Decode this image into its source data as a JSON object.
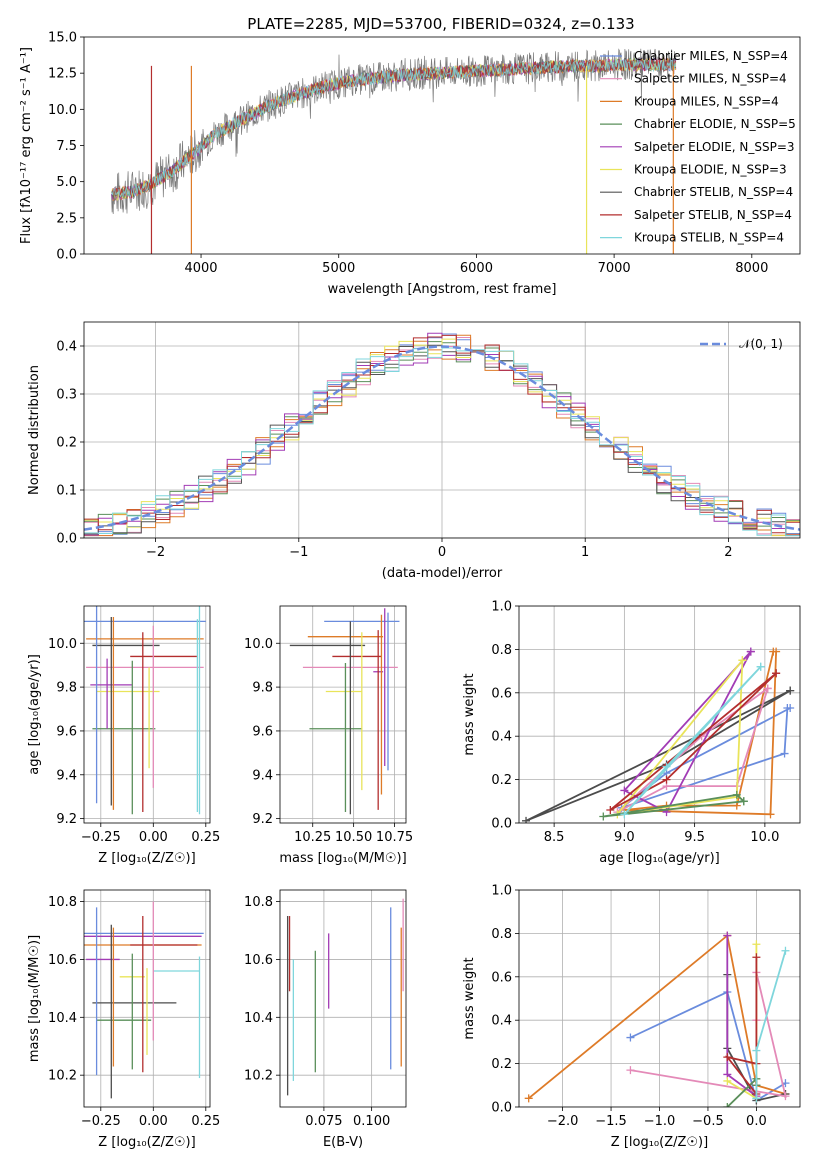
{
  "figure_title": "PLATE=2285, MJD=53700, FIBERID=0324, z=0.133",
  "colors": [
    "#6a8cdd",
    "#de7b28",
    "#4c4c4c",
    "#e48ab8",
    "#8fce3a",
    "#a23cb5",
    "#e9e45a",
    "#555555",
    "#b32e2e",
    "#7fd6dc",
    "#d7d7d7",
    "#5a8f5a"
  ],
  "chart_data": [
    {
      "id": "spectrum",
      "type": "line",
      "title": "PLATE=2285, MJD=53700, FIBERID=0324, z=0.133",
      "xlabel": "wavelength [Angstrom, rest frame]",
      "ylabel": "Flux [fλ10⁻¹⁷ erg cm⁻² s⁻¹ A⁻¹]",
      "xlim": [
        3150,
        8350
      ],
      "ylim": [
        0,
        15.0
      ],
      "xticks": [
        4000,
        5000,
        6000,
        7000,
        8000
      ],
      "yticks": [
        0.0,
        2.5,
        5.0,
        7.5,
        10.0,
        12.5,
        15.0
      ],
      "legend_position": "top-right",
      "continuum": {
        "x": [
          3350,
          3500,
          3650,
          3800,
          3950,
          4100,
          4300,
          4500,
          4700,
          4900,
          5100,
          5300,
          5500,
          5700,
          5900,
          6100,
          6300,
          6500,
          6700,
          6900,
          7100,
          7300,
          7450
        ],
        "y": [
          4.1,
          4.3,
          4.9,
          5.8,
          7.0,
          8.3,
          9.3,
          10.3,
          11.0,
          11.6,
          12.0,
          12.2,
          12.4,
          12.5,
          12.6,
          12.7,
          12.8,
          12.9,
          13.0,
          13.0,
          13.1,
          13.1,
          13.1
        ]
      },
      "series": [
        {
          "name": "Chabrier MILES, N_SSP=4",
          "color": "#6a8cdd"
        },
        {
          "name": "Salpeter MILES, N_SSP=4",
          "color": "#e48ab8"
        },
        {
          "name": "Kroupa MILES, N_SSP=4",
          "color": "#de7b28"
        },
        {
          "name": "Chabrier ELODIE, N_SSP=5",
          "color": "#5a8f5a"
        },
        {
          "name": "Salpeter ELODIE, N_SSP=3",
          "color": "#a23cb5"
        },
        {
          "name": "Kroupa ELODIE, N_SSP=3",
          "color": "#e9e45a"
        },
        {
          "name": "Chabrier STELIB, N_SSP=4",
          "color": "#555555"
        },
        {
          "name": "Salpeter STELIB, N_SSP=4",
          "color": "#b32e2e"
        },
        {
          "name": "Kroupa STELIB, N_SSP=4",
          "color": "#7fd6dc"
        }
      ]
    },
    {
      "id": "residuals",
      "type": "line",
      "xlabel": "(data-model)/error",
      "ylabel": "Normed distribution",
      "xlim": [
        -2.5,
        2.5
      ],
      "ylim": [
        0,
        0.45
      ],
      "xticks": [
        -2,
        -1,
        0,
        1,
        2
      ],
      "yticks": [
        0.0,
        0.1,
        0.2,
        0.3,
        0.4
      ],
      "legend": "𝒩(0, 1)",
      "legend_position": "top-right",
      "grid": true
    },
    {
      "id": "age_vs_Z",
      "type": "scatter",
      "xlabel": "Z [log₁₀(Z/Z☉)]",
      "ylabel": "age  [log₁₀(age/yr)]",
      "xlim": [
        -0.33,
        0.27
      ],
      "ylim": [
        9.18,
        10.17
      ],
      "xticks": [
        -0.25,
        0.0,
        0.25
      ],
      "yticks": [
        9.2,
        9.4,
        9.6,
        9.8,
        10.0
      ],
      "grid": true,
      "points": [
        {
          "x": -0.05,
          "y": 10.1,
          "xerr": 0.3,
          "yerr": 0.0,
          "color": "#6a8cdd"
        },
        {
          "x": -0.04,
          "y": 10.02,
          "xerr": 0.28,
          "yerr": 0.0,
          "color": "#de7b28"
        },
        {
          "x": -0.13,
          "y": 9.99,
          "xerr": 0.16,
          "yerr": 0.0,
          "color": "#4c4c4c"
        },
        {
          "x": 0.05,
          "y": 9.94,
          "xerr": 0.16,
          "yerr": 0.0,
          "color": "#b32e2e"
        },
        {
          "x": -0.04,
          "y": 9.89,
          "xerr": 0.28,
          "yerr": 0.0,
          "color": "#e48ab8"
        },
        {
          "x": -0.2,
          "y": 9.81,
          "xerr": 0.1,
          "yerr": 0.0,
          "color": "#a23cb5"
        },
        {
          "x": -0.12,
          "y": 9.78,
          "xerr": 0.15,
          "yerr": 0.0,
          "color": "#e9e45a"
        },
        {
          "x": -0.14,
          "y": 9.61,
          "xerr": 0.15,
          "yerr": 0.0,
          "color": "#5a8f5a"
        },
        {
          "x": -0.27,
          "y": 9.72,
          "xerr": 0.0,
          "yerr": 0.45,
          "color": "#6a8cdd"
        },
        {
          "x": -0.2,
          "y": 9.69,
          "xerr": 0.0,
          "yerr": 0.43,
          "color": "#4c4c4c"
        },
        {
          "x": -0.19,
          "y": 9.68,
          "xerr": 0.0,
          "yerr": 0.44,
          "color": "#de7b28"
        },
        {
          "x": -0.22,
          "y": 9.77,
          "xerr": 0.0,
          "yerr": 0.16,
          "color": "#a23cb5"
        },
        {
          "x": -0.1,
          "y": 9.57,
          "xerr": 0.0,
          "yerr": 0.35,
          "color": "#5a8f5a"
        },
        {
          "x": -0.05,
          "y": 9.64,
          "xerr": 0.0,
          "yerr": 0.41,
          "color": "#b32e2e"
        },
        {
          "x": -0.02,
          "y": 9.66,
          "xerr": 0.0,
          "yerr": 0.23,
          "color": "#e9e45a"
        },
        {
          "x": 0.0,
          "y": 9.71,
          "xerr": 0.0,
          "yerr": 0.37,
          "color": "#e48ab8"
        },
        {
          "x": 0.21,
          "y": 9.67,
          "xerr": 0.0,
          "yerr": 0.44,
          "color": "#7fd6dc"
        },
        {
          "x": 0.22,
          "y": 9.72,
          "xerr": 0.0,
          "yerr": 0.5,
          "color": "#7fd6dc"
        }
      ]
    },
    {
      "id": "age_vs_mass",
      "type": "scatter",
      "xlabel": "mass [log₁₀(M/M☉)]",
      "xlim": [
        10.05,
        10.82
      ],
      "ylim": [
        9.18,
        10.17
      ],
      "xticks": [
        10.25,
        10.5,
        10.75
      ],
      "yticks": [
        9.2,
        9.4,
        9.6,
        9.8,
        10.0
      ],
      "grid": true,
      "points": [
        {
          "x": 10.55,
          "y": 10.1,
          "xerr": 0.23,
          "yerr": 0.0,
          "color": "#6a8cdd"
        },
        {
          "x": 10.45,
          "y": 10.03,
          "xerr": 0.23,
          "yerr": 0.0,
          "color": "#de7b28"
        },
        {
          "x": 10.34,
          "y": 9.99,
          "xerr": 0.23,
          "yerr": 0.0,
          "color": "#4c4c4c"
        },
        {
          "x": 10.52,
          "y": 9.94,
          "xerr": 0.15,
          "yerr": 0.0,
          "color": "#b32e2e"
        },
        {
          "x": 10.48,
          "y": 9.89,
          "xerr": 0.29,
          "yerr": 0.0,
          "color": "#e48ab8"
        },
        {
          "x": 10.65,
          "y": 9.87,
          "xerr": 0.03,
          "yerr": 0.0,
          "color": "#a23cb5"
        },
        {
          "x": 10.44,
          "y": 9.78,
          "xerr": 0.11,
          "yerr": 0.0,
          "color": "#e9e45a"
        },
        {
          "x": 10.39,
          "y": 9.61,
          "xerr": 0.16,
          "yerr": 0.0,
          "color": "#5a8f5a"
        },
        {
          "x": 10.48,
          "y": 9.66,
          "xerr": 0.0,
          "yerr": 0.44,
          "color": "#4c4c4c"
        },
        {
          "x": 10.45,
          "y": 9.57,
          "xerr": 0.0,
          "yerr": 0.34,
          "color": "#5a8f5a"
        },
        {
          "x": 10.55,
          "y": 9.69,
          "xerr": 0.0,
          "yerr": 0.36,
          "color": "#e9e45a"
        },
        {
          "x": 10.65,
          "y": 9.65,
          "xerr": 0.0,
          "yerr": 0.41,
          "color": "#b32e2e"
        },
        {
          "x": 10.67,
          "y": 9.72,
          "xerr": 0.0,
          "yerr": 0.41,
          "color": "#de7b28"
        },
        {
          "x": 10.69,
          "y": 9.8,
          "xerr": 0.0,
          "yerr": 0.36,
          "color": "#a23cb5"
        },
        {
          "x": 10.71,
          "y": 9.78,
          "xerr": 0.0,
          "yerr": 0.36,
          "color": "#6a8cdd"
        }
      ]
    },
    {
      "id": "massweight_vs_age",
      "type": "line",
      "xlabel": "age  [log₁₀(age/yr)]",
      "ylabel": "mass weight",
      "xlim": [
        8.25,
        10.25
      ],
      "ylim": [
        0.0,
        1.0
      ],
      "xticks": [
        8.5,
        9.0,
        9.5,
        10.0
      ],
      "yticks": [
        0.0,
        0.2,
        0.4,
        0.6,
        0.8,
        1.0
      ],
      "grid": true,
      "series": [
        {
          "color": "#6a8cdd",
          "x": [
            10.16,
            10.14,
            8.98,
            9.3,
            10.18
          ],
          "y": [
            0.53,
            0.32,
            0.07,
            0.23,
            0.53
          ]
        },
        {
          "color": "#de7b28",
          "x": [
            10.08,
            10.04,
            9.0,
            9.3,
            9.8,
            10.06
          ],
          "y": [
            0.79,
            0.04,
            0.06,
            0.08,
            0.08,
            0.79
          ]
        },
        {
          "color": "#4c4c4c",
          "x": [
            10.18,
            8.3,
            9.3,
            10.18
          ],
          "y": [
            0.61,
            0.01,
            0.27,
            0.61
          ]
        },
        {
          "color": "#e48ab8",
          "x": [
            10.02,
            9.8,
            9.3,
            8.95,
            9.55,
            10.02
          ],
          "y": [
            0.62,
            0.17,
            0.17,
            0.05,
            0.4,
            0.62
          ]
        },
        {
          "color": "#a23cb5",
          "x": [
            9.9,
            9.0,
            9.3,
            9.9
          ],
          "y": [
            0.79,
            0.15,
            0.05,
            0.79
          ]
        },
        {
          "color": "#e9e45a",
          "x": [
            9.84,
            9.8,
            8.95,
            9.84
          ],
          "y": [
            0.75,
            0.12,
            0.04,
            0.75
          ]
        },
        {
          "color": "#5a8f5a",
          "x": [
            9.85,
            9.8,
            8.85,
            9.85
          ],
          "y": [
            0.1,
            0.13,
            0.03,
            0.1
          ]
        },
        {
          "color": "#b32e2e",
          "x": [
            10.08,
            8.9,
            9.3,
            10.08
          ],
          "y": [
            0.69,
            0.06,
            0.2,
            0.69
          ]
        },
        {
          "color": "#7fd6dc",
          "x": [
            9.97,
            9.0,
            9.3,
            9.97
          ],
          "y": [
            0.72,
            0.04,
            0.26,
            0.72
          ]
        }
      ]
    },
    {
      "id": "mass_vs_Z",
      "type": "scatter",
      "xlabel": "Z [log₁₀(Z/Z☉)]",
      "ylabel": "mass [log₁₀(M/M☉)]",
      "xlim": [
        -0.33,
        0.27
      ],
      "ylim": [
        10.09,
        10.84
      ],
      "xticks": [
        -0.25,
        0.0,
        0.25
      ],
      "yticks": [
        10.2,
        10.4,
        10.6,
        10.8
      ],
      "grid": true,
      "points": [
        {
          "x": -0.05,
          "y": 10.69,
          "xerr": 0.29,
          "yerr": 0.0,
          "color": "#6a8cdd"
        },
        {
          "x": -0.05,
          "y": 10.68,
          "xerr": 0.28,
          "yerr": 0.0,
          "color": "#a23cb5"
        },
        {
          "x": -0.05,
          "y": 10.65,
          "xerr": 0.28,
          "yerr": 0.0,
          "color": "#de7b28"
        },
        {
          "x": 0.05,
          "y": 10.65,
          "xerr": 0.16,
          "yerr": 0.0,
          "color": "#b32e2e"
        },
        {
          "x": -0.24,
          "y": 10.6,
          "xerr": 0.08,
          "yerr": 0.0,
          "color": "#a23cb5"
        },
        {
          "x": 0.11,
          "y": 10.56,
          "xerr": 0.11,
          "yerr": 0.0,
          "color": "#7fd6dc"
        },
        {
          "x": -0.1,
          "y": 10.54,
          "xerr": 0.06,
          "yerr": 0.0,
          "color": "#e9e45a"
        },
        {
          "x": -0.09,
          "y": 10.45,
          "xerr": 0.2,
          "yerr": 0.0,
          "color": "#4c4c4c"
        },
        {
          "x": -0.14,
          "y": 10.39,
          "xerr": 0.13,
          "yerr": 0.0,
          "color": "#5a8f5a"
        },
        {
          "x": -0.27,
          "y": 10.49,
          "xerr": 0.0,
          "yerr": 0.29,
          "color": "#6a8cdd"
        },
        {
          "x": -0.2,
          "y": 10.42,
          "xerr": 0.0,
          "yerr": 0.3,
          "color": "#4c4c4c"
        },
        {
          "x": -0.19,
          "y": 10.47,
          "xerr": 0.0,
          "yerr": 0.24,
          "color": "#de7b28"
        },
        {
          "x": -0.1,
          "y": 10.42,
          "xerr": 0.0,
          "yerr": 0.2,
          "color": "#5a8f5a"
        },
        {
          "x": -0.05,
          "y": 10.48,
          "xerr": 0.0,
          "yerr": 0.27,
          "color": "#b32e2e"
        },
        {
          "x": -0.03,
          "y": 10.42,
          "xerr": 0.0,
          "yerr": 0.15,
          "color": "#e9e45a"
        },
        {
          "x": 0.0,
          "y": 10.56,
          "xerr": 0.0,
          "yerr": 0.24,
          "color": "#e48ab8"
        },
        {
          "x": 0.22,
          "y": 10.4,
          "xerr": 0.0,
          "yerr": 0.21,
          "color": "#7fd6dc"
        }
      ]
    },
    {
      "id": "mass_vs_EBV",
      "type": "scatter",
      "xlabel": "E(B-V)",
      "xlim": [
        0.052,
        0.118
      ],
      "ylim": [
        10.09,
        10.84
      ],
      "xticks": [
        0.075,
        0.1
      ],
      "yticks": [
        10.2,
        10.4,
        10.6,
        10.8
      ],
      "grid": true,
      "points": [
        {
          "x": 0.056,
          "y": 10.44,
          "xerr": 0.0,
          "yerr": 0.31,
          "color": "#4c4c4c"
        },
        {
          "x": 0.057,
          "y": 10.62,
          "xerr": 0.0,
          "yerr": 0.13,
          "color": "#b32e2e"
        },
        {
          "x": 0.059,
          "y": 10.39,
          "xerr": 0.0,
          "yerr": 0.21,
          "color": "#7fd6dc"
        },
        {
          "x": 0.0705,
          "y": 10.42,
          "xerr": 0.0,
          "yerr": 0.21,
          "color": "#5a8f5a"
        },
        {
          "x": 0.0775,
          "y": 10.56,
          "xerr": 0.0,
          "yerr": 0.13,
          "color": "#a23cb5"
        },
        {
          "x": 0.11,
          "y": 10.5,
          "xerr": 0.0,
          "yerr": 0.28,
          "color": "#6a8cdd"
        },
        {
          "x": 0.1155,
          "y": 10.47,
          "xerr": 0.0,
          "yerr": 0.24,
          "color": "#de7b28"
        },
        {
          "x": 0.1165,
          "y": 10.65,
          "xerr": 0.0,
          "yerr": 0.16,
          "color": "#e48ab8"
        }
      ]
    },
    {
      "id": "massweight_vs_Z",
      "type": "line",
      "xlabel": "Z [log₁₀(Z/Z☉)]",
      "ylabel": "mass weight",
      "xlim": [
        -2.45,
        0.45
      ],
      "ylim": [
        0.0,
        1.0
      ],
      "xticks": [
        -2.0,
        -1.5,
        -1.0,
        -0.5,
        0.0
      ],
      "yticks": [
        0.0,
        0.2,
        0.4,
        0.6,
        0.8,
        1.0
      ],
      "grid": true,
      "series": [
        {
          "color": "#6a8cdd",
          "x": [
            -1.3,
            -0.3,
            0.0,
            0.3
          ],
          "y": [
            0.32,
            0.53,
            0.03,
            0.11
          ]
        },
        {
          "color": "#de7b28",
          "x": [
            -2.35,
            -0.3,
            0.0,
            0.3
          ],
          "y": [
            0.04,
            0.79,
            0.1,
            0.06
          ]
        },
        {
          "color": "#4c4c4c",
          "x": [
            -0.3,
            -0.3,
            0.0,
            0.3
          ],
          "y": [
            0.61,
            0.27,
            0.03,
            0.06
          ]
        },
        {
          "color": "#e48ab8",
          "x": [
            -1.3,
            0.3,
            0.0,
            0.0
          ],
          "y": [
            0.17,
            0.05,
            0.62,
            0.4
          ]
        },
        {
          "color": "#a23cb5",
          "x": [
            -0.3,
            -0.3,
            0.0
          ],
          "y": [
            0.79,
            0.15,
            0.05
          ]
        },
        {
          "color": "#e9e45a",
          "x": [
            0.0,
            0.0,
            -0.3
          ],
          "y": [
            0.75,
            0.04,
            0.12
          ]
        },
        {
          "color": "#5a8f5a",
          "x": [
            -0.3,
            0.0,
            0.0
          ],
          "y": [
            0.0,
            0.13,
            0.1
          ]
        },
        {
          "color": "#b32e2e",
          "x": [
            0.0,
            0.0,
            -0.3,
            0.0
          ],
          "y": [
            0.69,
            0.2,
            0.23,
            0.06
          ]
        },
        {
          "color": "#7fd6dc",
          "x": [
            0.3,
            0.0,
            0.0
          ],
          "y": [
            0.72,
            0.26,
            0.04
          ]
        }
      ]
    }
  ]
}
